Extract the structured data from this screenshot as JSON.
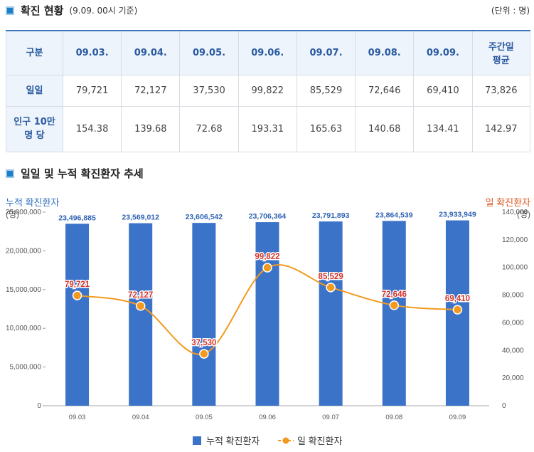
{
  "status": {
    "title": "확진 현황",
    "subtitle": "(9.09. 00시 기준)",
    "unit": "(단위 : 명)",
    "header": [
      "구분",
      "09.03.",
      "09.04.",
      "09.05.",
      "09.06.",
      "09.07.",
      "09.08.",
      "09.09.",
      "주간일\n평균"
    ],
    "row_daily": {
      "label": "일일",
      "values": [
        "79,721",
        "72,127",
        "37,530",
        "99,822",
        "85,529",
        "72,646",
        "69,410",
        "73,826"
      ]
    },
    "row_per100k": {
      "label": "인구 10만\n명 당",
      "values": [
        "154.38",
        "139.68",
        "72.68",
        "193.31",
        "165.63",
        "140.68",
        "134.41",
        "142.97"
      ]
    }
  },
  "trend": {
    "title": "일일 및 누적 확진환자 추세"
  },
  "chart_data": {
    "type": "bar",
    "categories": [
      "09.03",
      "09.04",
      "09.05",
      "09.06",
      "09.07",
      "09.08",
      "09.09"
    ],
    "series": [
      {
        "name": "누적 확진환자",
        "type": "bar",
        "axis": "left",
        "values": [
          23496885,
          23569012,
          23606542,
          23706364,
          23791893,
          23864539,
          23933949
        ],
        "labels": [
          "23,496,885",
          "23,569,012",
          "23,606,542",
          "23,706,364",
          "23,791,893",
          "23,864,539",
          "23,933,949"
        ]
      },
      {
        "name": "일 확진환자",
        "type": "line",
        "axis": "right",
        "values": [
          79721,
          72127,
          37530,
          99822,
          85529,
          72646,
          69410
        ],
        "labels": [
          "79,721",
          "72,127",
          "37,530",
          "99,822",
          "85,529",
          "72,646",
          "69,410"
        ]
      }
    ],
    "ylabel": "누적 확진환자",
    "ylabel_unit": "(명)",
    "y2label": "일 확진환자",
    "y2label_unit": "(명)",
    "ylim": [
      0,
      25000000
    ],
    "y2lim": [
      0,
      140000
    ],
    "yticks": [
      "0",
      "5,000,000",
      "10,000,000",
      "15,000,000",
      "20,000,000",
      "25,000,000"
    ],
    "y2ticks": [
      "0",
      "20,000",
      "40,000",
      "60,000",
      "80,000",
      "100,000",
      "120,000",
      "140,000"
    ],
    "legend": "bottom",
    "colors": {
      "bar": "#3b73c9",
      "bar_label": "#2f63b3",
      "line": "#f29a1f",
      "line_label": "#d2332b",
      "left_axis": "#2f6fc0",
      "right_axis": "#d9541c"
    }
  }
}
